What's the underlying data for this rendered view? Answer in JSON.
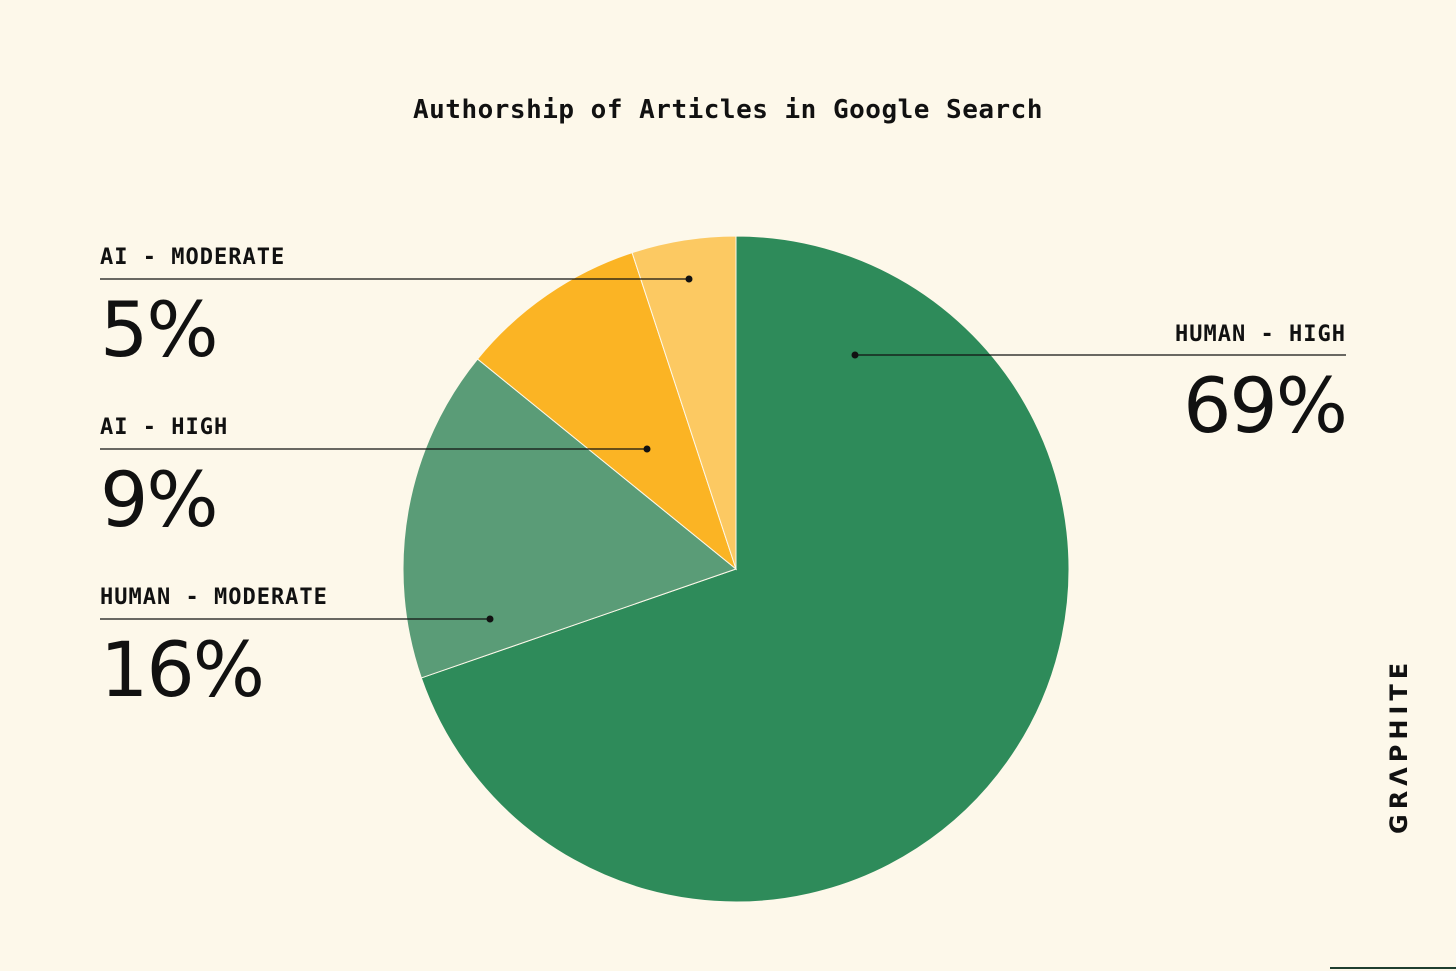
{
  "chart_data": {
    "type": "pie",
    "title": "Authorship of Articles in Google Search",
    "slices": [
      {
        "label": "HUMAN - HIGH",
        "value": 69,
        "display": "69%",
        "color": "#2e8b5a"
      },
      {
        "label": "HUMAN - MODERATE",
        "value": 16,
        "display": "16%",
        "color": "#5a9c77"
      },
      {
        "label": "AI - HIGH",
        "value": 9,
        "display": "9%",
        "color": "#fbb424"
      },
      {
        "label": "AI - MODERATE",
        "value": 5,
        "display": "5%",
        "color": "#fcc962"
      }
    ]
  },
  "branding": {
    "logo_text": "GRΛPHITE"
  },
  "colors": {
    "background": "#fdf8ea",
    "text": "#111111"
  }
}
